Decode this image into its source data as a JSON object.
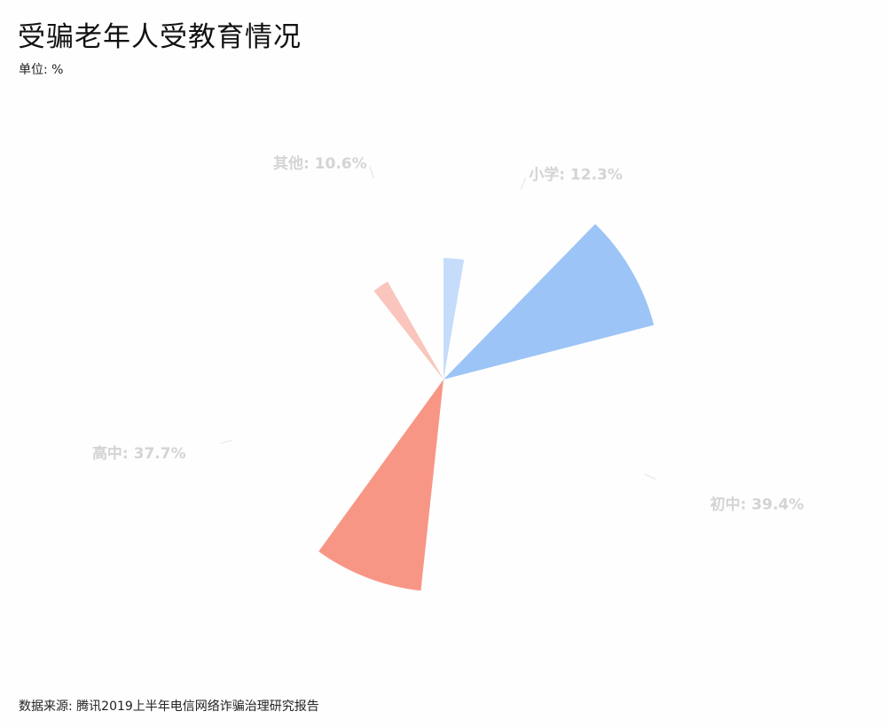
{
  "header": {
    "title": "受骗老年人受教育情况",
    "unit": "单位: %"
  },
  "footer": {
    "source": "数据来源: 腾讯2019上半年电信网络诈骗治理研究报告"
  },
  "chart_data": {
    "type": "pie",
    "variant": "nightingale-rose",
    "title": "受骗老年人受教育情况",
    "unit": "%",
    "categories": [
      "小学",
      "初中",
      "高中",
      "其他"
    ],
    "values": [
      12.3,
      39.4,
      37.7,
      10.6
    ],
    "labels": [
      "小学: 12.3%",
      "初中: 39.4%",
      "高中: 37.7%",
      "其他: 10.6%"
    ],
    "colors": [
      "#c6dcfb",
      "#9cc4f6",
      "#f89686",
      "#f9c5bc"
    ],
    "label_color": "#d4d4d4",
    "legend": "none"
  }
}
